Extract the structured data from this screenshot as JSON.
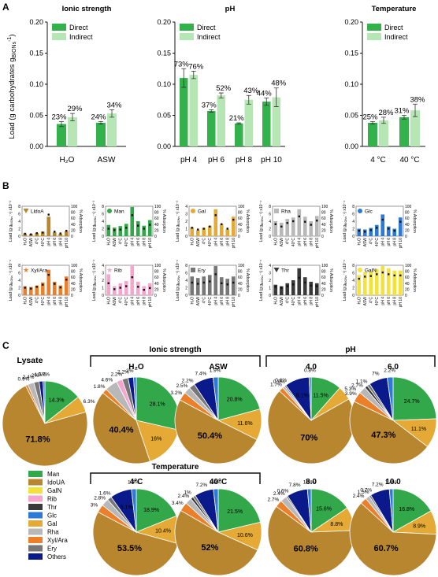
{
  "panel_labels": {
    "a": "A",
    "b": "B",
    "c": "C"
  },
  "colors": {
    "direct": "#33b14a",
    "indirect": "#b7e6b5",
    "axis": "#111111"
  },
  "chart_data": [
    {
      "id": "A1",
      "type": "bar",
      "title": "Ionic strength",
      "ylabel_main": "Load (g carbohydrates g",
      "ylabel_sub": "BIONs",
      "ylabel_sup": "-1",
      "ylabel_close": ")",
      "ylim": [
        0,
        0.2
      ],
      "yticks": [
        "0.00",
        "0.05",
        "0.10",
        "0.15",
        "0.20"
      ],
      "categories": [
        "H₂O",
        "ASW"
      ],
      "legend": [
        "Direct",
        "Indirect"
      ],
      "series": [
        {
          "name": "Direct",
          "values": [
            0.036,
            0.038
          ],
          "err": [
            0.004,
            0.002
          ],
          "labels": [
            "23%",
            "24%"
          ]
        },
        {
          "name": "Indirect",
          "values": [
            0.047,
            0.053
          ],
          "err": [
            0.006,
            0.006
          ],
          "labels": [
            "29%",
            "34%"
          ]
        }
      ]
    },
    {
      "id": "A2",
      "type": "bar",
      "title": "pH",
      "ylim": [
        0,
        0.2
      ],
      "yticks": [
        "0.00",
        "0.05",
        "0.10",
        "0.15",
        "0.20"
      ],
      "categories": [
        "pH 4",
        "pH 6",
        "pH 8",
        "pH 10"
      ],
      "legend": [
        "Direct",
        "Indirect"
      ],
      "series": [
        {
          "name": "Direct",
          "values": [
            0.11,
            0.057,
            0.037,
            0.072
          ],
          "err": [
            0.015,
            0.002,
            0.001,
            0.006
          ],
          "labels": [
            "73%",
            "37%",
            "21%",
            "44%"
          ]
        },
        {
          "name": "Indirect",
          "values": [
            0.115,
            0.082,
            0.075,
            0.079
          ],
          "err": [
            0.006,
            0.004,
            0.007,
            0.015
          ],
          "labels": [
            "76%",
            "52%",
            "43%",
            "48%"
          ]
        }
      ]
    },
    {
      "id": "A3",
      "type": "bar",
      "title": "Temperature",
      "ylim": [
        0,
        0.2
      ],
      "yticks": [
        "0.00",
        "0.05",
        "0.10",
        "0.15",
        "0.20"
      ],
      "categories": [
        "4 °C",
        "40 °C"
      ],
      "legend": [
        "Direct",
        "Indirect"
      ],
      "series": [
        {
          "name": "Direct",
          "values": [
            0.038,
            0.047
          ],
          "err": [
            0.002,
            0.003
          ],
          "labels": [
            "25%",
            "31%"
          ]
        },
        {
          "name": "Indirect",
          "values": [
            0.042,
            0.058
          ],
          "err": [
            0.005,
            0.01
          ],
          "labels": [
            "28%",
            "38%"
          ]
        }
      ]
    },
    {
      "id": "B",
      "type": "bar",
      "categories": [
        "H₂O",
        "ASW",
        "4°C",
        "40°C",
        "pH 4",
        "pH 6",
        "pH 8",
        "pH 10"
      ],
      "ylabel_prefix": "Load (g g",
      "ylabel_sub": "BIONs",
      "ylabel_suffix": "⁻¹)",
      "y2label": "% Adsorption",
      "y2ticks": [
        "0",
        "20",
        "40",
        "60",
        "80",
        "100"
      ],
      "panels": [
        {
          "name": "LldoA",
          "icon": "triangle-down",
          "color": "#b8862f",
          "scale": "x10⁻²",
          "yticks": [
            "0",
            "2",
            "4",
            "6",
            "8"
          ],
          "ymax": 8,
          "values": [
            0.7,
            0.6,
            0.8,
            1.2,
            5.2,
            1.0,
            0.6,
            1.3
          ],
          "pct": [
            8,
            6,
            10,
            12,
            72,
            15,
            9,
            18
          ]
        },
        {
          "name": "Man",
          "icon": "circle",
          "color": "#33a84a",
          "scale": "x10⁻³",
          "yticks": [
            "0",
            "2",
            "4",
            "6",
            "8"
          ],
          "ymax": 8,
          "values": [
            3.0,
            2.3,
            2.7,
            3.3,
            7.8,
            4.0,
            2.8,
            4.3
          ],
          "pct": [
            25,
            20,
            22,
            28,
            70,
            35,
            25,
            38
          ]
        },
        {
          "name": "Gal",
          "icon": "circle",
          "color": "#e5a935",
          "scale": "x10⁻³",
          "yticks": [
            "0",
            "1",
            "2",
            "3",
            "4"
          ],
          "ymax": 4,
          "values": [
            1.2,
            0.8,
            1.1,
            1.4,
            3.6,
            1.6,
            0.9,
            2.6
          ],
          "pct": [
            28,
            22,
            25,
            32,
            70,
            40,
            25,
            55
          ]
        },
        {
          "name": "Rha",
          "icon": "square",
          "color": "#b8b8b8",
          "scale": "x10⁻⁴",
          "yticks": [
            "0",
            "2",
            "4",
            "6",
            "8"
          ],
          "ymax": 8,
          "values": [
            4.0,
            3.6,
            4.6,
            5.0,
            7.2,
            5.2,
            4.0,
            5.4
          ],
          "pct": [
            40,
            32,
            44,
            50,
            66,
            48,
            38,
            52
          ]
        },
        {
          "name": "Glc",
          "icon": "circle",
          "color": "#2c7ad6",
          "scale": "x10⁻⁴",
          "yticks": [
            "0",
            "2",
            "4",
            "6",
            "8"
          ],
          "ymax": 8,
          "values": [
            2.0,
            1.8,
            2.2,
            3.0,
            5.8,
            2.6,
            2.0,
            5.0
          ],
          "pct": [
            18,
            15,
            20,
            28,
            55,
            25,
            18,
            48
          ]
        },
        {
          "name": "Xyl/Ara",
          "icon": "star",
          "color": "#ec7f2a",
          "scale": "x10⁻⁴",
          "yticks": [
            "0",
            "2",
            "4",
            "6",
            "8"
          ],
          "ymax": 8,
          "values": [
            2.4,
            2.2,
            2.6,
            3.4,
            6.8,
            3.6,
            2.6,
            5.0
          ],
          "pct": [
            25,
            22,
            28,
            35,
            68,
            38,
            26,
            52
          ]
        },
        {
          "name": "Rib",
          "icon": "star",
          "color": "#f4a6cf",
          "scale": "x10⁻⁴",
          "yticks": [
            "0",
            "1",
            "2",
            "3",
            "4"
          ],
          "ymax": 4,
          "values": [
            2.8,
            1.2,
            1.6,
            1.9,
            4.0,
            1.8,
            1.2,
            1.6
          ],
          "pct": [
            40,
            20,
            25,
            30,
            60,
            28,
            18,
            24
          ]
        },
        {
          "name": "Ery",
          "icon": "square",
          "color": "#777777",
          "scale": "x10⁻⁵",
          "yticks": [
            "0",
            "2",
            "4",
            "6",
            "8"
          ],
          "ymax": 8,
          "values": [
            5.0,
            4.6,
            5.0,
            5.4,
            7.8,
            4.8,
            4.4,
            5.0
          ],
          "pct": [
            42,
            38,
            42,
            46,
            70,
            40,
            36,
            42
          ]
        },
        {
          "name": "Thr",
          "icon": "triangle-down",
          "color": "#3a3a3a",
          "scale": "x10⁻⁵",
          "yticks": [
            "0",
            "1",
            "2",
            "3",
            "4"
          ],
          "ymax": 4,
          "values": [
            1.4,
            1.2,
            1.6,
            2.0,
            3.6,
            2.4,
            1.8,
            1.6
          ],
          "pct": [
            28,
            24,
            30,
            36,
            58,
            42,
            32,
            30
          ]
        },
        {
          "name": "GalN",
          "icon": "circle",
          "color": "#f4e23a",
          "scale": "x10⁻⁵",
          "yticks": [
            "0",
            "2",
            "4",
            "6",
            "8"
          ],
          "ymax": 8,
          "values": [
            5.4,
            6.2,
            6.4,
            7.0,
            7.8,
            7.2,
            6.6,
            6.6
          ],
          "pct": [
            55,
            62,
            64,
            70,
            76,
            70,
            66,
            66
          ]
        }
      ]
    },
    {
      "id": "C",
      "type": "pie",
      "categories": [
        "Man",
        "IdoUA",
        "GalN",
        "Rib",
        "Thr",
        "Glc",
        "Gal",
        "Rha",
        "Xyl/Ara",
        "Ery",
        "Others"
      ],
      "colors": [
        "#33a84a",
        "#b8862f",
        "#f4e23a",
        "#f4a6cf",
        "#3a3a3a",
        "#2c7ad6",
        "#e5a935",
        "#b8b8b8",
        "#ec7f2a",
        "#777777",
        "#0a1a8a"
      ],
      "group_titles": {
        "ionic": "Ionic strength",
        "ph": "pH",
        "temperature": "Temperature"
      },
      "pies": [
        {
          "title": "Lysate",
          "slices": [
            14.3,
            71.8,
            0,
            0,
            0,
            0.7,
            6.3,
            2.4,
            0.9,
            2.0,
            1.5
          ],
          "labels": [
            "14.3%",
            "71.8%",
            "",
            "",
            "",
            "0.7%",
            "6.3%",
            "2.4%",
            "0.9%",
            "2%",
            "1.5%"
          ]
        },
        {
          "title": "H₂O",
          "slices": [
            28.1,
            40.4,
            0,
            2.2,
            0,
            1.0,
            16.0,
            4.6,
            1.8,
            2.2,
            2.0
          ],
          "labels": [
            "28.1%",
            "40.4%",
            "",
            "2.2%",
            "",
            "",
            "16%",
            "4.6%",
            "1.8%",
            "2.2%",
            "2%"
          ]
        },
        {
          "title": "ASW",
          "slices": [
            20.8,
            50.4,
            0,
            0,
            0,
            1.9,
            11.6,
            2.5,
            3.2,
            2.2,
            7.4
          ],
          "labels": [
            "20.8%",
            "50.4%",
            "",
            "",
            "",
            "1.9%",
            "11.6%",
            "2.5%",
            "3.2%",
            "2.2%",
            "7.4%"
          ]
        },
        {
          "title": "4.0",
          "slices": [
            11.5,
            70.0,
            0,
            0,
            0,
            0.8,
            5.3,
            0.9,
            1.7,
            0.6,
            9.1
          ],
          "labels": [
            "11.5%",
            "70%",
            "",
            "",
            "",
            "0.8%",
            "5.3%",
            "0.9%",
            "1.7%",
            "0.6%",
            "9.1%"
          ]
        },
        {
          "title": "6.0",
          "slices": [
            24.7,
            47.3,
            0,
            0,
            1.1,
            2.2,
            11.1,
            2.7,
            3.9,
            1.1,
            7.0
          ],
          "labels": [
            "24.7%",
            "47.3%",
            "",
            "",
            "1.1%",
            "2.2%",
            "11.1%",
            "2.7%",
            "3.9%",
            "",
            "7%"
          ]
        },
        {
          "title": "4°C",
          "slices": [
            18.9,
            53.5,
            0,
            0,
            0,
            1.8,
            10.4,
            2.8,
            3.0,
            1.6,
            8.1
          ],
          "labels": [
            "18.9%",
            "53.5%",
            "",
            "",
            "",
            "1.8%",
            "10.4%",
            "2.8%",
            "3%",
            "1.6%",
            "8.1%"
          ]
        },
        {
          "title": "40°C",
          "slices": [
            21.5,
            52.0,
            0,
            0,
            1.0,
            1.8,
            10.6,
            2.4,
            3.4,
            1.0,
            7.2
          ],
          "labels": [
            "21.5%",
            "52%",
            "",
            "",
            "1%",
            "1.8%",
            "10.6%",
            "2.4%",
            "3.4%",
            "",
            "7.2%"
          ]
        },
        {
          "title": "8.0",
          "slices": [
            15.6,
            60.8,
            0,
            0,
            0,
            1.4,
            8.8,
            2.4,
            2.7,
            0.6,
            7.8
          ],
          "labels": [
            "15.6%",
            "60.8%",
            "",
            "",
            "",
            "1.4%",
            "8.8%",
            "2.4%",
            "2.7%",
            "0.6%",
            "7.8%"
          ]
        },
        {
          "title": "10.0",
          "slices": [
            16.8,
            60.7,
            0,
            0,
            0,
            1.4,
            8.9,
            1.5,
            2.4,
            0.7,
            7.2
          ],
          "labels": [
            "16.8%",
            "60.7%",
            "",
            "",
            "",
            "1.4%",
            "8.9%",
            "1.5%",
            "2.4%",
            "0.7%",
            "7.2%"
          ]
        }
      ]
    }
  ]
}
